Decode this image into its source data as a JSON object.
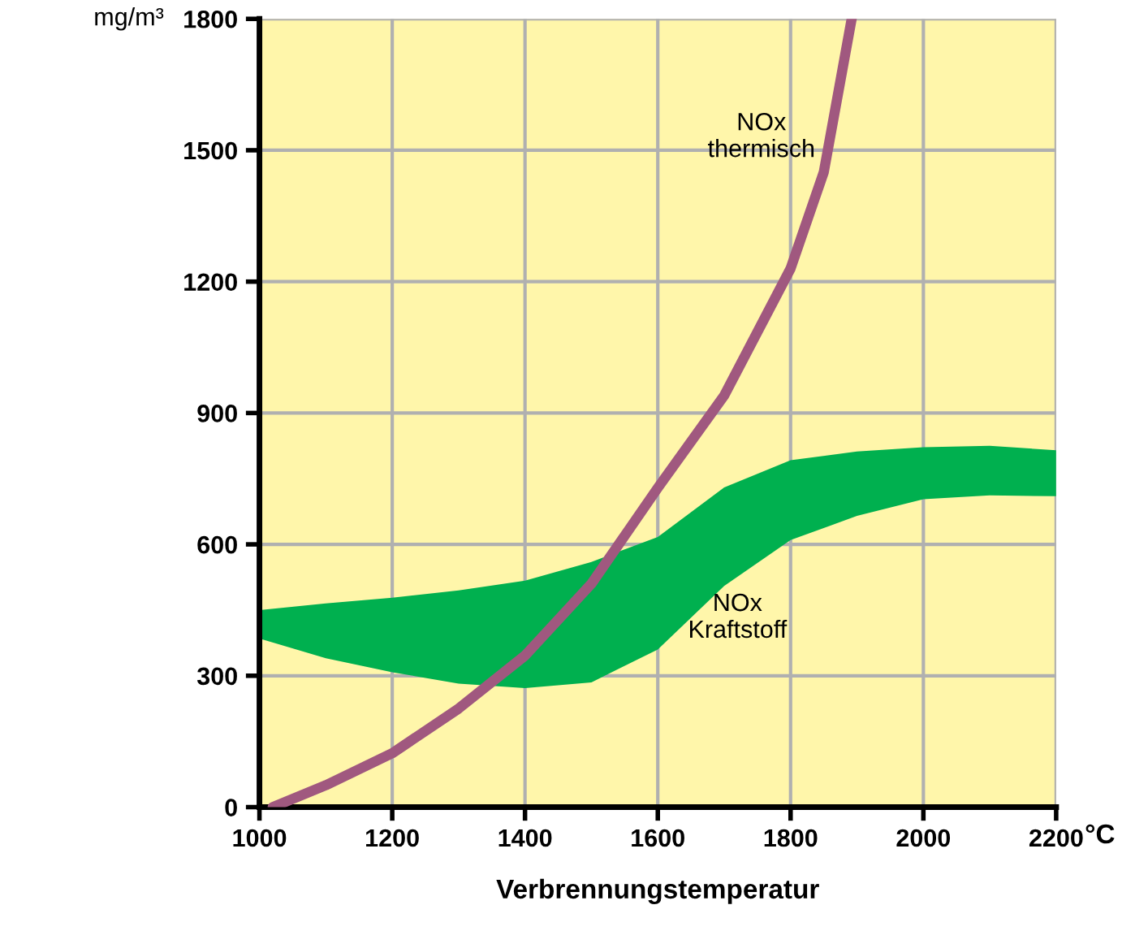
{
  "chart_data": {
    "type": "line",
    "xlabel": "Verbrennungstemperatur",
    "ylabel": "mg/m³",
    "xlim": [
      1000,
      2200
    ],
    "xticks": [
      1000,
      1200,
      1400,
      1600,
      1800,
      2000,
      2200
    ],
    "ylim": [
      0,
      1800
    ],
    "yticks": [
      0,
      300,
      600,
      900,
      1200,
      1500,
      1800
    ],
    "grid": true,
    "legend": false,
    "marker": "none",
    "line_style": "solid",
    "series": [
      {
        "type": "area",
        "color": "#00b04f",
        "x": [
          1000,
          1100,
          1200,
          1300,
          1400,
          1500,
          1600,
          1700,
          1800,
          1900,
          2000,
          2100,
          2200
        ],
        "values": [
          null,
          null,
          null,
          null,
          null,
          null,
          null,
          null,
          null,
          null,
          null,
          null,
          null
        ],
        "lower": [
          385,
          340,
          308,
          282,
          272,
          285,
          360,
          505,
          610,
          665,
          703,
          712,
          710
        ],
        "upper": [
          450,
          465,
          478,
          495,
          517,
          560,
          617,
          730,
          792,
          812,
          822,
          825,
          815
        ]
      },
      {
        "type": "line",
        "color": "#a0587f",
        "x": [
          1020,
          1100,
          1200,
          1300,
          1400,
          1500,
          1600,
          1700,
          1800,
          1850,
          1892
        ],
        "values": [
          0,
          50,
          123,
          225,
          346,
          510,
          729,
          940,
          1230,
          1450,
          1800
        ]
      }
    ],
    "annotations": [
      "NOx\nthermisch",
      "NOx\nKraftstoff",
      "°C"
    ]
  }
}
